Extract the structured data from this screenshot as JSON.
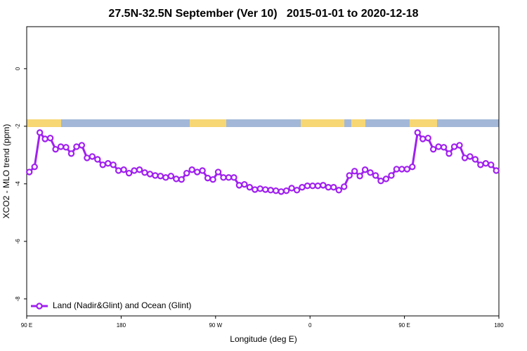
{
  "chart_data": {
    "type": "line",
    "title": "27.5N-32.5N September (Ver 10)   2015-01-01 to 2020-12-18",
    "xlabel": "Longitude (deg E)",
    "ylabel": "XCO2 - MLO trend (ppm)",
    "x": [
      92.5,
      97.5,
      102.5,
      107.5,
      112.5,
      117.5,
      122.5,
      127.5,
      132.5,
      137.5,
      142.5,
      147.5,
      152.5,
      157.5,
      162.5,
      167.5,
      172.5,
      177.5,
      182.5,
      187.5,
      192.5,
      197.5,
      202.5,
      207.5,
      212.5,
      217.5,
      222.5,
      227.5,
      232.5,
      237.5,
      242.5,
      247.5,
      252.5,
      257.5,
      262.5,
      267.5,
      272.5,
      277.5,
      282.5,
      287.5,
      292.5,
      297.5,
      302.5,
      307.5,
      312.5,
      317.5,
      322.5,
      327.5,
      332.5,
      337.5,
      342.5,
      347.5,
      352.5,
      357.5,
      362.5,
      367.5,
      372.5,
      377.5,
      382.5,
      387.5,
      392.5,
      397.5,
      402.5,
      407.5,
      412.5,
      417.5,
      422.5,
      427.5,
      432.5,
      437.5,
      442.5,
      447.5,
      452.5,
      457.5,
      462.5,
      467.5,
      472.5,
      477.5,
      482.5,
      487.5,
      492.5,
      497.5,
      502.5,
      507.5,
      512.5,
      517.5,
      522.5,
      527.5,
      532.5,
      537.5
    ],
    "series": [
      {
        "name": "Land (Nadir&Glint) and Ocean (Glint)",
        "color": "#a020f0",
        "values": [
          -3.59,
          -3.41,
          -2.22,
          -2.44,
          -2.41,
          -2.8,
          -2.71,
          -2.73,
          -2.95,
          -2.71,
          -2.66,
          -3.1,
          -3.05,
          -3.15,
          -3.34,
          -3.29,
          -3.34,
          -3.54,
          -3.51,
          -3.63,
          -3.54,
          -3.51,
          -3.61,
          -3.66,
          -3.71,
          -3.73,
          -3.78,
          -3.73,
          -3.83,
          -3.85,
          -3.63,
          -3.51,
          -3.59,
          -3.54,
          -3.8,
          -3.85,
          -3.59,
          -3.78,
          -3.78,
          -3.78,
          -4.05,
          -4.02,
          -4.12,
          -4.2,
          -4.17,
          -4.2,
          -4.22,
          -4.24,
          -4.27,
          -4.24,
          -4.15,
          -4.22,
          -4.12,
          -4.07,
          -4.07,
          -4.07,
          -4.05,
          -4.12,
          -4.12,
          -4.22,
          -4.1,
          -3.71,
          -3.56,
          -3.73,
          -3.51,
          -3.61,
          -3.71,
          -3.9,
          -3.83,
          -3.71,
          -3.49,
          -3.49,
          -3.49,
          -3.41,
          -2.22,
          -2.44,
          -2.41,
          -2.8,
          -2.71,
          -2.73,
          -2.95,
          -2.71,
          -2.66,
          -3.1,
          -3.05,
          -3.15,
          -3.34,
          -3.29,
          -3.34,
          -3.54
        ]
      }
    ],
    "xlim": [
      90,
      540
    ],
    "xticks": [
      {
        "value": 90,
        "label": "90 E"
      },
      180,
      {
        "value": 270,
        "label": "90 W"
      },
      {
        "value": 360,
        "label": "0"
      },
      {
        "value": 450,
        "label": "90 E"
      },
      {
        "value": 540,
        "label": "180"
      }
    ],
    "ylim": [
      -8.59,
      1.46
    ],
    "yticks": [
      0,
      -2,
      -4,
      -6,
      -8
    ],
    "legend": "bottom-left"
  }
}
